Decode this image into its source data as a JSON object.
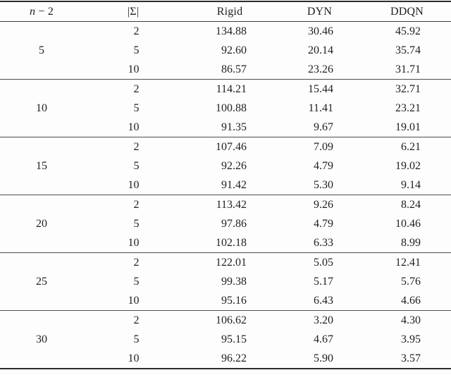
{
  "table": {
    "headers": {
      "col1": {
        "variable": "n",
        "minus": "−",
        "value": "2"
      },
      "col2": "|Σ|",
      "col3": "Rigid",
      "col4": "DYN",
      "col5": "DDQN"
    },
    "groups": [
      {
        "n_minus_2": "5",
        "rows": [
          {
            "sigma": "2",
            "rigid": "134.88",
            "dyn": "30.46",
            "ddqn": "45.92"
          },
          {
            "sigma": "5",
            "rigid": "92.60",
            "dyn": "20.14",
            "ddqn": "35.74"
          },
          {
            "sigma": "10",
            "rigid": "86.57",
            "dyn": "23.26",
            "ddqn": "31.71"
          }
        ]
      },
      {
        "n_minus_2": "10",
        "rows": [
          {
            "sigma": "2",
            "rigid": "114.21",
            "dyn": "15.44",
            "ddqn": "32.71"
          },
          {
            "sigma": "5",
            "rigid": "100.88",
            "dyn": "11.41",
            "ddqn": "23.21"
          },
          {
            "sigma": "10",
            "rigid": "91.35",
            "dyn": "9.67",
            "ddqn": "19.01"
          }
        ]
      },
      {
        "n_minus_2": "15",
        "rows": [
          {
            "sigma": "2",
            "rigid": "107.46",
            "dyn": "7.09",
            "ddqn": "6.21"
          },
          {
            "sigma": "5",
            "rigid": "92.26",
            "dyn": "4.79",
            "ddqn": "19.02"
          },
          {
            "sigma": "10",
            "rigid": "91.42",
            "dyn": "5.30",
            "ddqn": "9.14"
          }
        ]
      },
      {
        "n_minus_2": "20",
        "rows": [
          {
            "sigma": "2",
            "rigid": "113.42",
            "dyn": "9.26",
            "ddqn": "8.24"
          },
          {
            "sigma": "5",
            "rigid": "97.86",
            "dyn": "4.79",
            "ddqn": "10.46"
          },
          {
            "sigma": "10",
            "rigid": "102.18",
            "dyn": "6.33",
            "ddqn": "8.99"
          }
        ]
      },
      {
        "n_minus_2": "25",
        "rows": [
          {
            "sigma": "2",
            "rigid": "122.01",
            "dyn": "5.05",
            "ddqn": "12.41"
          },
          {
            "sigma": "5",
            "rigid": "99.38",
            "dyn": "5.17",
            "ddqn": "5.76"
          },
          {
            "sigma": "10",
            "rigid": "95.16",
            "dyn": "6.43",
            "ddqn": "4.66"
          }
        ]
      },
      {
        "n_minus_2": "30",
        "rows": [
          {
            "sigma": "2",
            "rigid": "106.62",
            "dyn": "3.20",
            "ddqn": "4.30"
          },
          {
            "sigma": "5",
            "rigid": "95.15",
            "dyn": "4.67",
            "ddqn": "3.95"
          },
          {
            "sigma": "10",
            "rigid": "96.22",
            "dyn": "5.90",
            "ddqn": "3.57"
          }
        ]
      }
    ]
  },
  "colors": {
    "rule_heavy": "#2c2c2c",
    "rule_header": "#3a3a3a",
    "rule_group": "#4d4d4d",
    "text": "#1e1e1e",
    "background": "#fdfdfd"
  }
}
